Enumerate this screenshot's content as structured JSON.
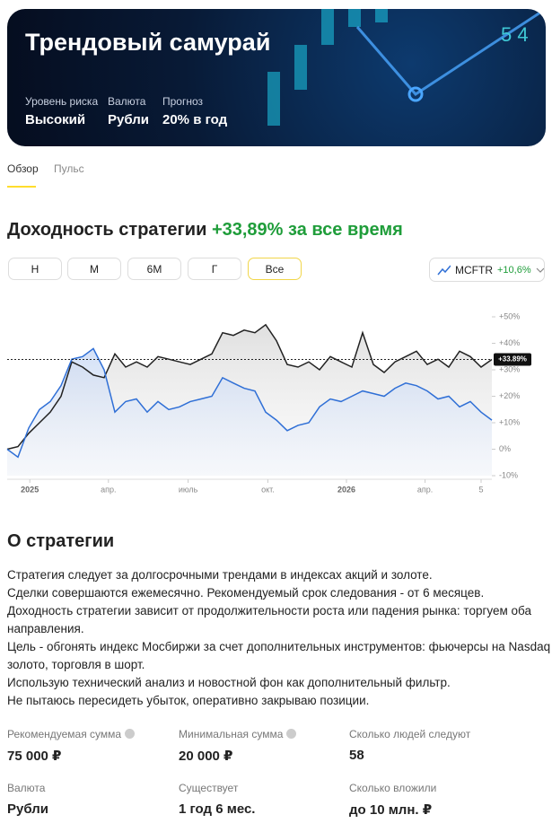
{
  "header": {
    "title": "Трендовый самурай",
    "stats": [
      {
        "label": "Уровень риска",
        "value": "Высокий"
      },
      {
        "label": "Валюта",
        "value": "Рубли"
      },
      {
        "label": "Прогноз",
        "value": "20% в год"
      }
    ]
  },
  "tabs": [
    "Обзор",
    "Пульс"
  ],
  "heading": {
    "text": "Доходность стратегии",
    "highlight": "+33,89% за все время"
  },
  "periods": [
    "Н",
    "М",
    "6М",
    "Г",
    "Все"
  ],
  "benchmark_change": "+10,6%",
  "chart_data": {
    "type": "line",
    "x": [
      0,
      1,
      2,
      3,
      4,
      5,
      6,
      7,
      8,
      9,
      10,
      11,
      12,
      13,
      14,
      15,
      16,
      17,
      18,
      19,
      20,
      21,
      22,
      23,
      24,
      25,
      26,
      27,
      28,
      29,
      30,
      31,
      32,
      33,
      34,
      35,
      36,
      37,
      38,
      39,
      40,
      41,
      42,
      43,
      44,
      45
    ],
    "series": [
      {
        "color": "#222222",
        "values": [
          0,
          1,
          6,
          10,
          14,
          20,
          33,
          31,
          28,
          27,
          36,
          31,
          33,
          31,
          35,
          34,
          33,
          32,
          34,
          36,
          44,
          43,
          45,
          44,
          47,
          41,
          32,
          31,
          33,
          30,
          35,
          33,
          31,
          44,
          32,
          29,
          33,
          35,
          37,
          32,
          34,
          31,
          37,
          35,
          31,
          33.89
        ]
      },
      {
        "name": "MCFTR",
        "color": "#2f6fd6",
        "values": [
          0,
          -3,
          8,
          15,
          18,
          24,
          34,
          35,
          38,
          30,
          14,
          18,
          19,
          14,
          18,
          15,
          16,
          18,
          19,
          20,
          27,
          25,
          23,
          22,
          14,
          11,
          7,
          9,
          10,
          16,
          19,
          18,
          20,
          22,
          21,
          20,
          23,
          25,
          24,
          22,
          19,
          20,
          16,
          18,
          14,
          11
        ]
      }
    ],
    "last_label": "+33.89%",
    "xlim": [
      0,
      45
    ],
    "xticks": [
      {
        "value": 2.1,
        "label": "2025"
      },
      {
        "value": 9.4,
        "label": "апр."
      },
      {
        "value": 16.8,
        "label": "июль"
      },
      {
        "value": 24.2,
        "label": "окт."
      },
      {
        "value": 31.5,
        "label": "2026"
      },
      {
        "value": 38.8,
        "label": "апр."
      },
      {
        "value": 44,
        "label": "5"
      }
    ],
    "ylim": [
      -10,
      50
    ],
    "yticks": [
      {
        "value": -10,
        "label": "-10%"
      },
      {
        "value": 0,
        "label": "0%"
      },
      {
        "value": 10,
        "label": "+10%"
      },
      {
        "value": 20,
        "label": "+20%"
      },
      {
        "value": 30,
        "label": "+30%"
      },
      {
        "value": 40,
        "label": "+40%"
      },
      {
        "value": 50,
        "label": "+50%"
      }
    ]
  },
  "about": {
    "title": "О стратегии",
    "lines": [
      "Стратегия следует за долгосрочными трендами в индексах акций и золоте.",
      "Сделки совершаются ежемесячно. Рекомендуемый срок следования - от 6 месяцев.",
      "Доходность стратегии зависит от продолжительности роста или падения рынка: торгуем оба",
      "направления.",
      "Цель - обгонять индекс Мосбиржи за счет дополнительных инструментов: фьючерсы на Nasdaq и",
      "золото, торговля в шорт.",
      "Использую технический анализ и новостной фон как дополнительный фильтр.",
      "Не пытаюсь пересидеть убыток, оперативно закрываю позиции."
    ]
  },
  "info": [
    {
      "label": "Рекомендуемая сумма",
      "value": "75 000 ₽"
    },
    {
      "label": "Минимальная сумма",
      "value": "20 000 ₽"
    },
    {
      "label": "Сколько людей следуют",
      "value": "58"
    },
    {
      "label": "Валюта",
      "value": "Рубли"
    },
    {
      "label": "Существует",
      "value": "1 год 6 мес."
    },
    {
      "label": "Сколько вложили",
      "value": "до 10 млн. ₽"
    }
  ]
}
